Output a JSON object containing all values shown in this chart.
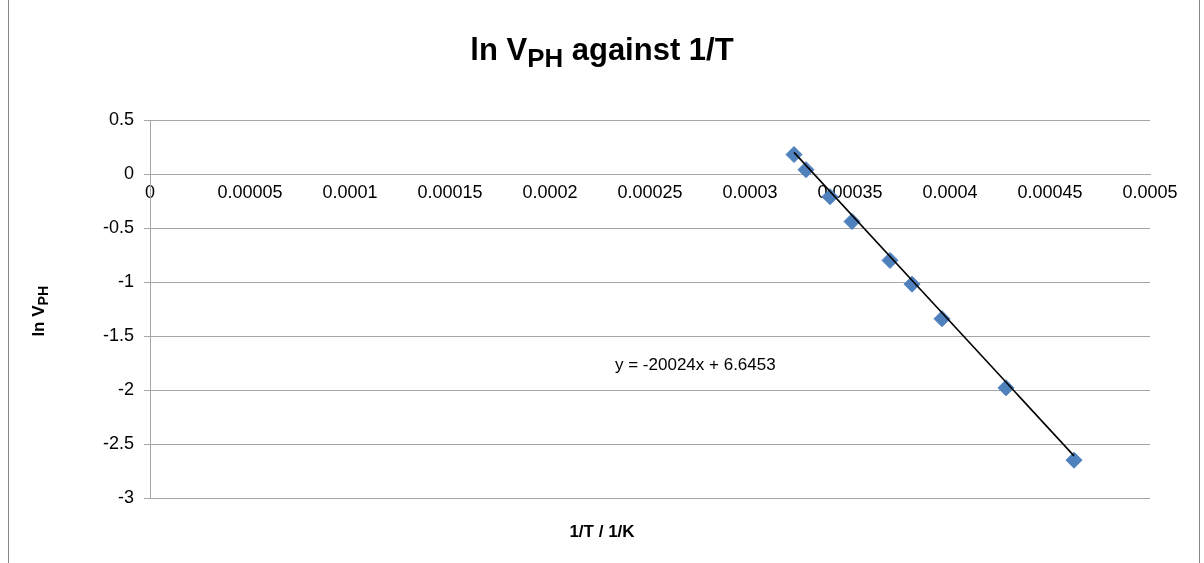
{
  "chart_data": {
    "type": "scatter",
    "title": "ln V$_{PH}$ against 1/T",
    "xlabel": "1/T  / 1/K",
    "ylabel": "ln V$_{PH}$",
    "series": [
      {
        "color": "#4f81bd",
        "marker": "diamond",
        "x": [
          0.000322,
          0.000328,
          0.00034,
          0.000351,
          0.00037,
          0.000381,
          0.000396,
          0.000428,
          0.000462
        ],
        "values": [
          0.18,
          0.04,
          -0.21,
          -0.44,
          -0.8,
          -1.02,
          -1.34,
          -1.98,
          -2.65
        ]
      },
      {
        "type": "line",
        "color": "#000000",
        "marker": "none",
        "x": [
          0.000322,
          0.000462
        ],
        "values": [
          0.2,
          -2.61
        ]
      }
    ],
    "annotations": [
      "y = -20024x + 6.6453"
    ],
    "xlim": [
      0,
      0.0005
    ],
    "ylim": [
      -3,
      0.5
    ],
    "xticks": [
      0,
      {
        "value": 5e-05,
        "label": "0.00005"
      },
      {
        "value": 0.0001,
        "label": "0.0001"
      },
      {
        "value": 0.00015,
        "label": "0.00015"
      },
      {
        "value": 0.0002,
        "label": "0.0002"
      },
      {
        "value": 0.00025,
        "label": "0.00025"
      },
      {
        "value": 0.0003,
        "label": "0.0003"
      },
      {
        "value": 0.00035,
        "label": "0.00035"
      },
      {
        "value": 0.0004,
        "label": "0.0004"
      },
      {
        "value": 0.00045,
        "label": "0.00045"
      },
      {
        "value": 0.0005,
        "label": "0.0005"
      }
    ],
    "yticks": [
      -3,
      -2.5,
      -2,
      -1.5,
      -1,
      -0.5,
      0,
      0.5
    ],
    "grid": "y",
    "legend": false
  }
}
